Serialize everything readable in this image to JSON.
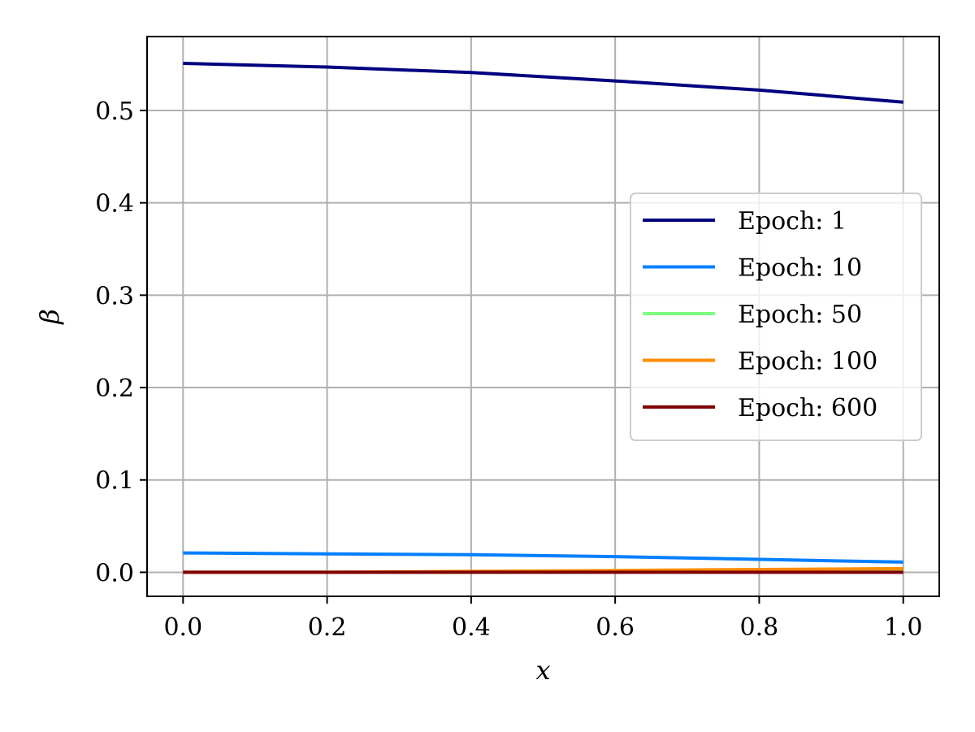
{
  "chart_data": {
    "type": "line",
    "title": "",
    "xlabel": "x",
    "ylabel": "β",
    "xlim": [
      -0.05,
      1.05
    ],
    "ylim": [
      -0.026,
      0.58
    ],
    "xticks": [
      0.0,
      0.2,
      0.4,
      0.6,
      0.8,
      1.0
    ],
    "xtick_labels": [
      "0.0",
      "0.2",
      "0.4",
      "0.6",
      "0.8",
      "1.0"
    ],
    "yticks": [
      0.0,
      0.1,
      0.2,
      0.3,
      0.4,
      0.5
    ],
    "ytick_labels": [
      "0.0",
      "0.1",
      "0.2",
      "0.3",
      "0.4",
      "0.5"
    ],
    "grid": true,
    "legend_position": "center-right",
    "x": [
      0.0,
      0.2,
      0.4,
      0.6,
      0.8,
      1.0
    ],
    "series": [
      {
        "name": "Epoch: 1",
        "color": "#00007f",
        "values": [
          0.551,
          0.547,
          0.541,
          0.532,
          0.522,
          0.509
        ]
      },
      {
        "name": "Epoch: 10",
        "color": "#007fff",
        "values": [
          0.021,
          0.02,
          0.019,
          0.017,
          0.014,
          0.011
        ]
      },
      {
        "name": "Epoch: 50",
        "color": "#7fff7f",
        "values": [
          0.0,
          0.0,
          0.0,
          0.001,
          0.001,
          0.001
        ]
      },
      {
        "name": "Epoch: 100",
        "color": "#ff8c00",
        "values": [
          0.0,
          0.0,
          0.001,
          0.002,
          0.003,
          0.004
        ]
      },
      {
        "name": "Epoch: 600",
        "color": "#7f0000",
        "values": [
          0.0,
          0.0,
          0.0,
          0.0,
          0.0,
          0.0
        ]
      }
    ]
  }
}
